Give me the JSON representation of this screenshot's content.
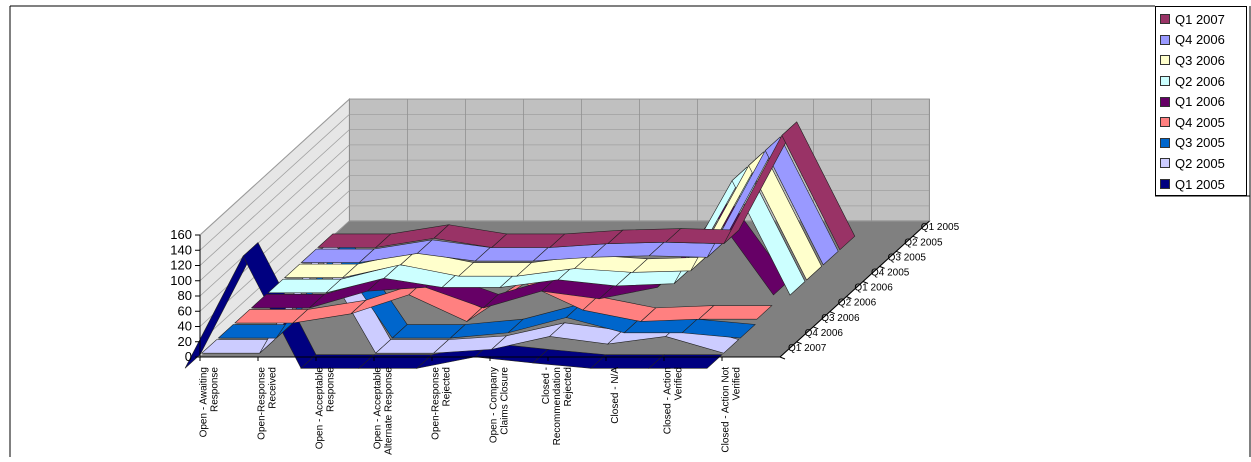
{
  "chart_data": {
    "type": "3d-ribbon-line",
    "categories": [
      "Open - Awaiting Response",
      "Open-Response Received",
      "Open - Acceptable Response",
      "Open - Acceptable Alternate Response",
      "Open-Response Rejected",
      "Open - Company Claims Closure",
      "Closed - Recommendation Rejected",
      "Closed - N/A",
      "Closed - Action Verified",
      "Closed - Action Not Verified"
    ],
    "category_lines": [
      [
        "Open - Awaiting",
        "Response"
      ],
      [
        "Open-Response",
        "Received"
      ],
      [
        "Open - Acceptable",
        "Response"
      ],
      [
        "Open - Acceptable",
        "Alternate Response"
      ],
      [
        "Open-Response",
        "Rejected"
      ],
      [
        "Open - Company",
        "Claims Closure"
      ],
      [
        "Closed -",
        "Recommendation",
        "Rejected"
      ],
      [
        "Closed - N/A"
      ],
      [
        "Closed - Action",
        "Verified"
      ],
      [
        "Closed - Action Not",
        "Verified"
      ]
    ],
    "yticks": [
      "0",
      "20",
      "40",
      "60",
      "80",
      "100",
      "120",
      "140",
      "160"
    ],
    "ylim": [
      0,
      160
    ],
    "series": [
      {
        "name": "Q1 2007",
        "color": "#993366",
        "values": [
          3,
          3,
          15,
          3,
          3,
          8,
          10,
          8,
          150,
          0
        ]
      },
      {
        "name": "Q4 2006",
        "color": "#9999FF",
        "values": [
          3,
          3,
          15,
          5,
          5,
          10,
          12,
          10,
          150,
          0
        ]
      },
      {
        "name": "Q3 2006",
        "color": "#FFFFCC",
        "values": [
          3,
          3,
          20,
          5,
          5,
          15,
          10,
          12,
          150,
          0
        ]
      },
      {
        "name": "Q2 2006",
        "color": "#CCFFFF",
        "values": [
          3,
          3,
          22,
          10,
          10,
          20,
          12,
          15,
          150,
          0
        ]
      },
      {
        "name": "Q1 2006",
        "color": "#660066",
        "values": [
          3,
          3,
          25,
          30,
          3,
          25,
          15,
          30,
          125,
          20
        ]
      },
      {
        "name": "Q4 2005",
        "color": "#FF8080",
        "values": [
          3,
          3,
          15,
          40,
          5,
          55,
          20,
          5,
          8,
          8
        ]
      },
      {
        "name": "Q3 2005",
        "color": "#0066CC",
        "values": [
          3,
          3,
          115,
          3,
          3,
          10,
          30,
          10,
          10,
          3
        ]
      },
      {
        "name": "Q2 2005",
        "color": "#CCCCFF",
        "values": [
          3,
          3,
          135,
          3,
          3,
          8,
          25,
          15,
          25,
          3
        ]
      },
      {
        "name": "Q1 2005",
        "color": "#000080",
        "values": [
          3,
          150,
          3,
          3,
          3,
          18,
          10,
          3,
          3,
          3
        ]
      }
    ],
    "depth_labels": [
      "Q1 2005",
      "Q2 2005",
      "Q3 2005",
      "Q4 2005",
      "Q1 2006",
      "Q2 2006",
      "Q3 2006",
      "Q4 2006",
      "Q1 2007"
    ],
    "legend_position": "top-right",
    "grid": true
  }
}
